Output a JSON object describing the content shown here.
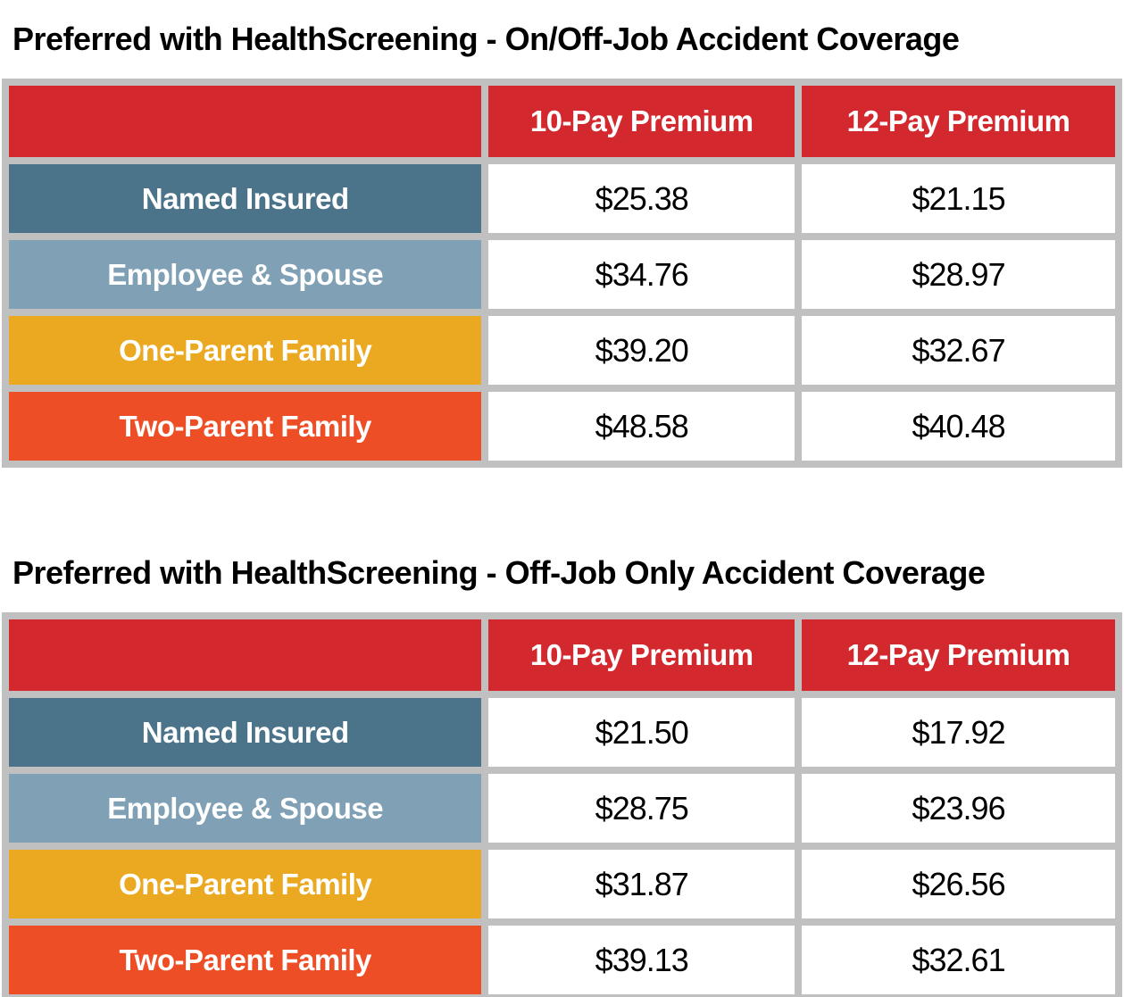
{
  "colors": {
    "header_red": "#d2282e",
    "named_insured_blue": "#4b748b",
    "employee_spouse_blue": "#7fa0b5",
    "one_parent_gold": "#eaa921",
    "two_parent_orange": "#ee4e26",
    "grid_gray": "#c0c0c0",
    "label_text": "#ffffff",
    "value_text": "#000000",
    "title_text": "#000000"
  },
  "tables": [
    {
      "title": "Preferred with HealthScreening - On/Off-Job Accident Coverage",
      "columns": [
        "",
        "10-Pay Premium",
        "12-Pay Premium"
      ],
      "rows": [
        {
          "label": "Named Insured",
          "pay10": "$25.38",
          "pay12": "$21.15"
        },
        {
          "label": "Employee & Spouse",
          "pay10": "$34.76",
          "pay12": "$28.97"
        },
        {
          "label": "One-Parent Family",
          "pay10": "$39.20",
          "pay12": "$32.67"
        },
        {
          "label": "Two-Parent Family",
          "pay10": "$48.58",
          "pay12": "$40.48"
        }
      ]
    },
    {
      "title": "Preferred with HealthScreening - Off-Job Only Accident Coverage",
      "columns": [
        "",
        "10-Pay Premium",
        "12-Pay Premium"
      ],
      "rows": [
        {
          "label": "Named Insured",
          "pay10": "$21.50",
          "pay12": "$17.92"
        },
        {
          "label": "Employee & Spouse",
          "pay10": "$28.75",
          "pay12": "$23.96"
        },
        {
          "label": "One-Parent Family",
          "pay10": "$31.87",
          "pay12": "$26.56"
        },
        {
          "label": "Two-Parent Family",
          "pay10": "$39.13",
          "pay12": "$32.61"
        }
      ]
    }
  ]
}
